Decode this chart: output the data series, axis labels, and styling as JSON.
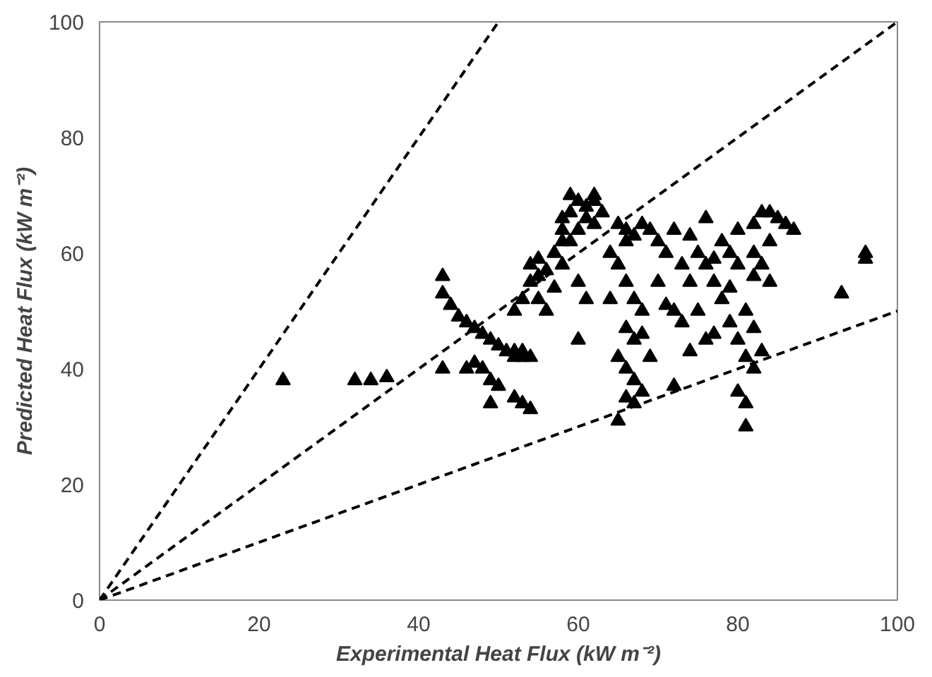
{
  "chart_data": {
    "type": "scatter",
    "xlabel": "Experimental Heat Flux (kW m⁻²)",
    "ylabel": "Predicted Heat Flux (kW m⁻²)",
    "xlim": [
      0,
      100
    ],
    "ylim": [
      0,
      100
    ],
    "xticks": [
      0,
      20,
      40,
      60,
      80,
      100
    ],
    "yticks": [
      0,
      20,
      40,
      60,
      80,
      100
    ],
    "grid": false,
    "series": [
      {
        "marker": "triangle",
        "color": "#000000",
        "x": [
          23,
          32,
          34,
          36,
          43,
          43,
          44,
          45,
          46,
          47,
          48,
          49,
          50,
          51,
          52,
          53,
          54,
          53,
          52,
          43,
          46,
          47,
          48,
          49,
          50,
          49,
          52,
          53,
          54,
          54,
          55,
          55,
          54,
          56,
          53,
          55,
          52,
          56,
          57,
          57,
          58,
          58,
          59,
          59,
          60,
          61,
          62,
          61,
          62,
          60,
          59,
          58,
          62,
          60,
          61,
          65,
          66,
          66,
          67,
          68,
          69,
          65,
          66,
          67,
          68,
          66,
          67,
          68,
          65,
          66,
          67,
          68,
          66,
          67,
          65,
          69,
          70,
          71,
          72,
          73,
          74,
          72,
          73,
          75,
          74,
          76,
          75,
          76,
          77,
          78,
          78,
          79,
          80,
          80,
          77,
          72,
          76,
          74,
          79,
          80,
          81,
          82,
          80,
          81,
          81,
          83,
          82,
          81,
          79,
          82,
          82,
          82,
          83,
          84,
          85,
          86,
          87,
          84,
          83,
          84,
          77,
          71,
          70,
          93,
          96,
          96,
          63,
          64,
          64,
          60,
          58
        ],
        "values": [
          38,
          38,
          38,
          38.5,
          56,
          53,
          51,
          49,
          48,
          47,
          46,
          45,
          44,
          43,
          43,
          43,
          42,
          42,
          42,
          40,
          40,
          41,
          40,
          38,
          37,
          34,
          35,
          34,
          33,
          58,
          59,
          56,
          55,
          57,
          52,
          52,
          50,
          50,
          54,
          60,
          62,
          66,
          67,
          70,
          69,
          68,
          69,
          66,
          65,
          64,
          62,
          64,
          70,
          45,
          52,
          65,
          64,
          62,
          63,
          65,
          64,
          58,
          55,
          52,
          50,
          47,
          45,
          46,
          42,
          40,
          38,
          36,
          35,
          34,
          31,
          42,
          62,
          60,
          64,
          58,
          55,
          50,
          48,
          50,
          63,
          66,
          60,
          58,
          55,
          52,
          62,
          60,
          58,
          64,
          46,
          37,
          45,
          43,
          48,
          45,
          42,
          40,
          36,
          34,
          30,
          43,
          47,
          50,
          54,
          56,
          60,
          65,
          67,
          67,
          66,
          65,
          64,
          62,
          58,
          55,
          59,
          51,
          55,
          53,
          60,
          59,
          67,
          60,
          52,
          55,
          58
        ]
      },
      {
        "type": "line",
        "marker": "none",
        "line_style": "dashed",
        "color": "#000000",
        "x": [
          0,
          50
        ],
        "values": [
          0,
          100
        ]
      },
      {
        "type": "line",
        "marker": "none",
        "line_style": "dashed",
        "color": "#000000",
        "x": [
          0,
          100
        ],
        "values": [
          0,
          100
        ]
      },
      {
        "type": "line",
        "marker": "none",
        "line_style": "dashed",
        "color": "#000000",
        "x": [
          0,
          100
        ],
        "values": [
          0,
          50
        ]
      }
    ]
  }
}
